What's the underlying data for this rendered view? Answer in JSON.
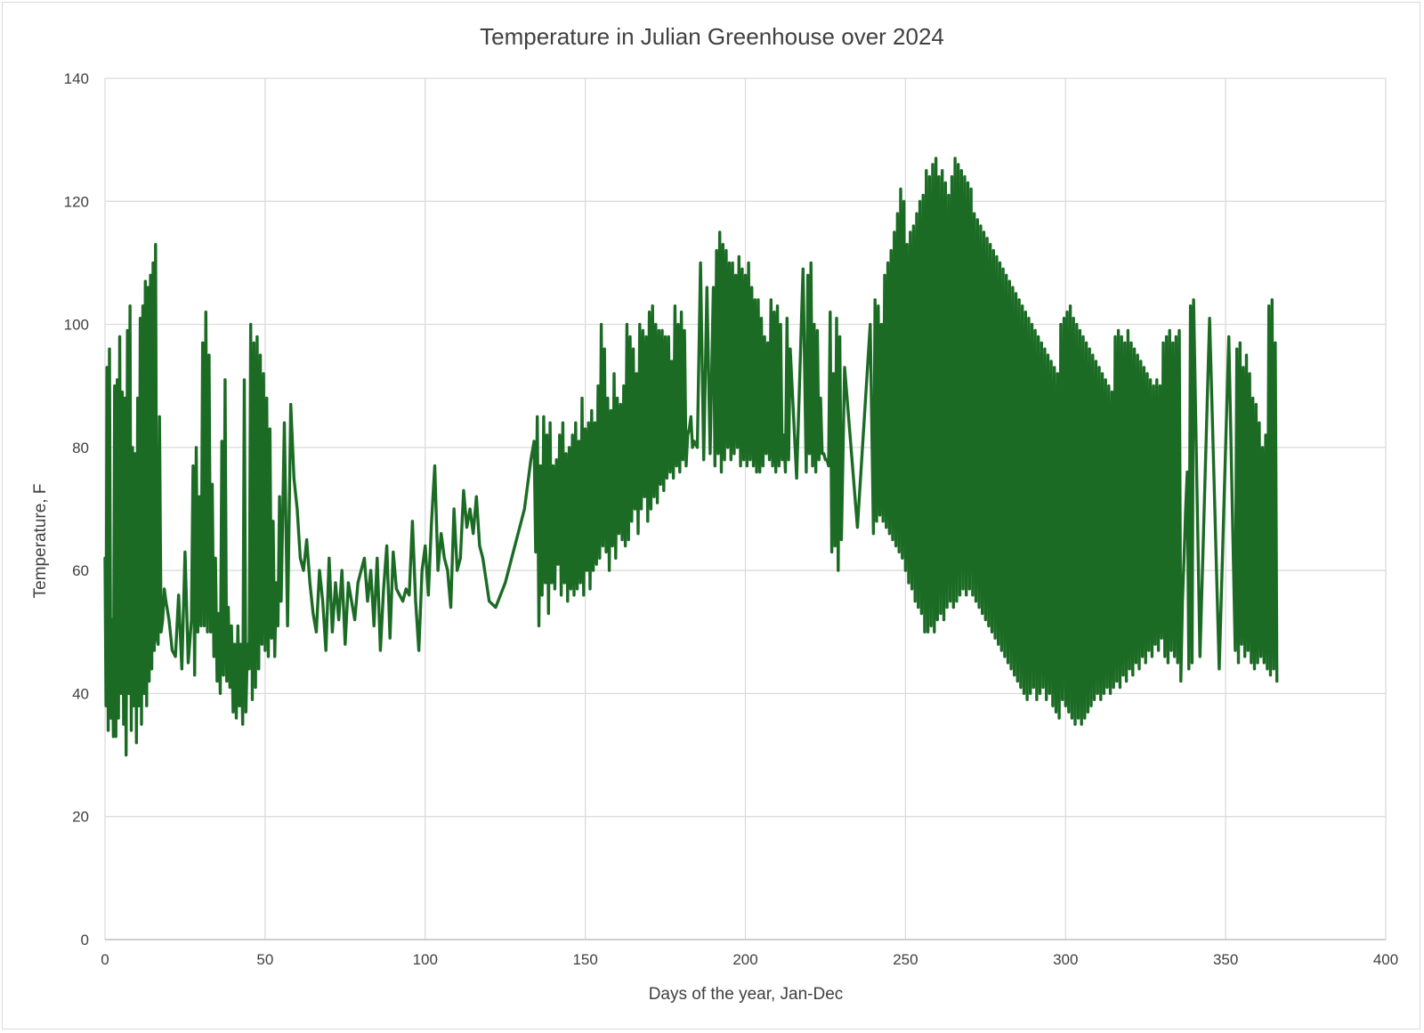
{
  "chart_data": {
    "type": "line",
    "title": "Temperature in Julian Greenhouse  over 2024",
    "xlabel": "Days of the year, Jan-Dec",
    "ylabel": "Temperature, F",
    "xlim": [
      0,
      400
    ],
    "ylim": [
      0,
      140
    ],
    "xticks": [
      0,
      50,
      100,
      150,
      200,
      250,
      300,
      350,
      400
    ],
    "yticks": [
      0,
      20,
      40,
      60,
      80,
      100,
      120,
      140
    ],
    "grid": true,
    "legend": "none",
    "series": [
      {
        "color": "#1b6b24",
        "x": [
          0,
          0.3,
          0.6,
          1,
          1.4,
          1.8,
          2.2,
          2.6,
          3,
          3.4,
          3.8,
          4.2,
          4.6,
          5,
          5.4,
          5.8,
          6.2,
          6.6,
          7,
          7.4,
          7.8,
          8.2,
          8.6,
          9,
          9.4,
          9.8,
          10.2,
          10.6,
          11,
          11.4,
          11.8,
          12.2,
          12.6,
          13,
          13.4,
          13.8,
          14.2,
          14.6,
          15,
          15.4,
          15.8,
          16.2,
          16.6,
          17,
          17.5,
          18,
          18.5,
          19,
          20,
          21,
          22,
          23,
          24,
          25,
          26,
          27,
          27.5,
          28,
          28.5,
          29,
          29.5,
          30,
          30.5,
          31,
          31.5,
          32,
          32.5,
          33,
          33.5,
          34,
          34.5,
          35,
          35.5,
          36,
          36.5,
          37,
          37.5,
          38,
          38.5,
          39,
          39.5,
          40,
          40.5,
          41,
          41.5,
          42,
          42.5,
          43,
          43.5,
          44,
          44.5,
          45,
          45.5,
          46,
          46.5,
          47,
          47.5,
          48,
          48.5,
          49,
          49.5,
          50,
          50.5,
          51,
          51.5,
          52,
          52.5,
          53,
          53.5,
          54,
          54.5,
          55,
          56,
          57,
          58,
          59,
          60,
          61,
          62,
          63,
          64,
          65,
          66,
          67,
          68,
          69,
          70,
          71,
          72,
          73,
          74,
          75,
          76,
          77,
          78,
          79,
          80,
          81,
          82,
          83,
          84,
          85,
          86,
          87,
          88,
          89,
          90,
          91,
          92,
          93,
          94,
          95,
          96,
          97,
          98,
          99,
          100,
          101,
          102,
          103,
          104,
          105,
          106,
          107,
          108,
          109,
          110,
          111,
          112,
          113,
          114,
          115,
          116,
          117,
          118,
          120,
          122,
          125,
          128,
          131,
          133,
          134,
          134.5,
          135,
          135.5,
          136,
          136.5,
          137,
          137.5,
          138,
          138.5,
          139,
          139.5,
          140,
          140.5,
          141,
          141.5,
          142,
          142.5,
          143,
          143.5,
          144,
          144.5,
          145,
          145.5,
          146,
          146.5,
          147,
          147.5,
          148,
          148.5,
          149,
          149.5,
          150,
          150.5,
          151,
          151.5,
          152,
          152.5,
          153,
          153.5,
          154,
          154.5,
          155,
          155.5,
          156,
          156.5,
          157,
          157.5,
          158,
          158.5,
          159,
          159.5,
          160,
          160.5,
          161,
          161.5,
          162,
          162.5,
          163,
          163.5,
          164,
          164.5,
          165,
          165.5,
          166,
          166.5,
          167,
          167.5,
          168,
          168.5,
          169,
          169.5,
          170,
          170.5,
          171,
          171.5,
          172,
          172.5,
          173,
          173.5,
          174,
          174.5,
          175,
          175.5,
          176,
          176.5,
          177,
          177.5,
          178,
          178.5,
          179,
          179.5,
          180,
          180.5,
          181,
          181.5,
          182,
          182.5,
          183,
          183.5,
          184,
          185,
          186,
          187,
          188,
          189,
          190,
          190.5,
          191,
          191.5,
          192,
          192.5,
          193,
          193.5,
          194,
          194.5,
          195,
          195.5,
          196,
          196.5,
          197,
          197.5,
          198,
          198.5,
          199,
          199.5,
          200,
          200.5,
          201,
          201.5,
          202,
          202.5,
          203,
          203.5,
          204,
          204.5,
          205,
          205.5,
          206,
          206.5,
          207,
          207.5,
          208,
          208.5,
          209,
          209.5,
          210,
          210.5,
          211,
          211.5,
          212,
          212.5,
          213,
          213.5,
          214,
          216,
          218,
          219,
          219.5,
          220,
          220.5,
          221,
          221.5,
          222,
          222.5,
          223,
          223.5,
          224,
          224.5,
          225,
          225.5,
          226,
          226.5,
          227,
          227.5,
          228,
          228.5,
          229,
          229.5,
          230,
          231,
          235,
          239,
          240,
          240.5,
          241,
          241.5,
          242,
          242.5,
          243,
          243.5,
          244,
          244.5,
          245,
          245.5,
          246,
          246.5,
          247,
          247.5,
          248,
          248.5,
          249,
          249.5,
          250,
          250.5,
          251,
          251.5,
          252,
          252.5,
          253,
          253.5,
          254,
          254.5,
          255,
          255.5,
          256,
          256.5,
          257,
          257.5,
          258,
          258.5,
          259,
          259.5,
          260,
          260.5,
          261,
          261.5,
          262,
          262.5,
          263,
          263.5,
          264,
          264.5,
          265,
          265.5,
          266,
          266.5,
          267,
          267.5,
          268,
          268.5,
          269,
          269.5,
          270,
          270.5,
          271,
          271.5,
          272,
          272.5,
          273,
          273.5,
          274,
          274.5,
          275,
          275.5,
          276,
          276.5,
          277,
          277.5,
          278,
          278.5,
          279,
          279.5,
          280,
          280.5,
          281,
          281.5,
          282,
          282.5,
          283,
          283.5,
          284,
          284.5,
          285,
          285.5,
          286,
          286.5,
          287,
          287.5,
          288,
          288.5,
          289,
          289.5,
          290,
          290.5,
          291,
          291.5,
          292,
          292.5,
          293,
          293.5,
          294,
          294.5,
          295,
          295.5,
          296,
          296.5,
          297,
          297.5,
          298,
          298.5,
          299,
          299.5,
          300,
          300.5,
          301,
          301.5,
          302,
          302.5,
          303,
          303.5,
          304,
          304.5,
          305,
          305.5,
          306,
          306.5,
          307,
          307.5,
          308,
          308.5,
          309,
          309.5,
          310,
          310.5,
          311,
          311.5,
          312,
          312.5,
          313,
          313.5,
          314,
          314.5,
          315,
          315.5,
          316,
          316.5,
          317,
          317.5,
          318,
          318.5,
          319,
          319.5,
          320,
          320.5,
          321,
          321.5,
          322,
          322.5,
          323,
          323.5,
          324,
          324.5,
          325,
          325.5,
          326,
          326.5,
          327,
          327.5,
          328,
          328.5,
          329,
          329.5,
          330,
          330.5,
          331,
          331.5,
          332,
          332.5,
          333,
          333.5,
          334,
          334.5,
          335,
          335.5,
          336,
          336.5,
          337,
          337.5,
          338,
          338.5,
          339,
          339.5,
          340,
          342,
          345,
          348,
          351,
          353,
          353.5,
          354,
          354.5,
          355,
          355.5,
          356,
          356.5,
          357,
          357.5,
          358,
          358.5,
          359,
          359.5,
          360,
          360.5,
          361,
          361.5,
          362,
          362.5,
          363,
          363.5,
          364,
          364.5,
          365,
          365.5,
          366
        ],
        "y": [
          62,
          38,
          93,
          34,
          96,
          36,
          52,
          33,
          90,
          33,
          91,
          36,
          98,
          40,
          89,
          35,
          88,
          30,
          99,
          40,
          103,
          34,
          80,
          38,
          79,
          32,
          88,
          38,
          101,
          35,
          103,
          40,
          107,
          38,
          106,
          42,
          108,
          44,
          110,
          47,
          113,
          49,
          48,
          85,
          50,
          52,
          57,
          55,
          52,
          47,
          46,
          56,
          44,
          63,
          45,
          52,
          77,
          43,
          80,
          50,
          72,
          51,
          97,
          51,
          102,
          50,
          95,
          50,
          74,
          46,
          62,
          42,
          53,
          40,
          81,
          43,
          91,
          42,
          54,
          41,
          51,
          37,
          48,
          36,
          51,
          38,
          48,
          35,
          91,
          37,
          48,
          44,
          100,
          39,
          97,
          41,
          98,
          44,
          95,
          48,
          92,
          47,
          88,
          46,
          83,
          49,
          68,
          46,
          58,
          51,
          72,
          55,
          84,
          51,
          87,
          75,
          70,
          62,
          60,
          65,
          58,
          53,
          50,
          60,
          55,
          47,
          62,
          50,
          58,
          52,
          60,
          48,
          58,
          55,
          52,
          58,
          60,
          62,
          55,
          60,
          51,
          62,
          47,
          57,
          64,
          49,
          63,
          57,
          56,
          55,
          57,
          56,
          68,
          55,
          47,
          60,
          64,
          56,
          68,
          77,
          60,
          66,
          62,
          60,
          54,
          70,
          60,
          62,
          73,
          67,
          70,
          66,
          72,
          64,
          62,
          55,
          54,
          58,
          64,
          70,
          78,
          81,
          63,
          85,
          51,
          77,
          56,
          85,
          58,
          82,
          53,
          84,
          58,
          77,
          57,
          78,
          61,
          82,
          56,
          84,
          58,
          79,
          55,
          80,
          57,
          82,
          56,
          84,
          57,
          81,
          58,
          88,
          56,
          83,
          60,
          84,
          57,
          86,
          60,
          84,
          61,
          90,
          62,
          100,
          64,
          96,
          63,
          88,
          60,
          86,
          64,
          92,
          62,
          88,
          66,
          87,
          65,
          90,
          64,
          100,
          65,
          98,
          68,
          96,
          70,
          92,
          66,
          100,
          70,
          99,
          72,
          98,
          68,
          102,
          70,
          103,
          72,
          100,
          71,
          99,
          74,
          99,
          73,
          98,
          75,
          98,
          76,
          94,
          75,
          103,
          77,
          100,
          76,
          102,
          78,
          99,
          77,
          82,
          83,
          85,
          80,
          81,
          80,
          110,
          78,
          106,
          79,
          106,
          77,
          112,
          79,
          115,
          76,
          113,
          78,
          112,
          80,
          110,
          78,
          110,
          79,
          108,
          80,
          111,
          77,
          109,
          78,
          108,
          77,
          110,
          78,
          106,
          77,
          104,
          76,
          104,
          76,
          101,
          77,
          98,
          79,
          97,
          78,
          104,
          77,
          102,
          76,
          103,
          77,
          100,
          78,
          82,
          76,
          101,
          78,
          96,
          75,
          109,
          76,
          108,
          79,
          110,
          77,
          100,
          76,
          99,
          78,
          88,
          79,
          79,
          78,
          78,
          77,
          102,
          63,
          92,
          64,
          101,
          60,
          98,
          65,
          93,
          67,
          100,
          66,
          104,
          68,
          103,
          69,
          100,
          68,
          108,
          67,
          110,
          66,
          112,
          65,
          115,
          64,
          118,
          63,
          122,
          62,
          120,
          60,
          113,
          58,
          115,
          57,
          116,
          55,
          118,
          54,
          120,
          53,
          121,
          50,
          125,
          50,
          124,
          51,
          126,
          50,
          127,
          52,
          124,
          53,
          125,
          52,
          123,
          54,
          121,
          55,
          124,
          54,
          127,
          55,
          126,
          56,
          125,
          57,
          124,
          56,
          123,
          57,
          122,
          56,
          118,
          55,
          117,
          54,
          116,
          53,
          115,
          52,
          114,
          51,
          113,
          50,
          112,
          49,
          111,
          48,
          110,
          47,
          109,
          46,
          108,
          45,
          107,
          44,
          106,
          43,
          105,
          42,
          104,
          41,
          103,
          40,
          102,
          39,
          101,
          40,
          100,
          41,
          99,
          39,
          98,
          40,
          97,
          41,
          96,
          39,
          95,
          40,
          94,
          38,
          93,
          37,
          92,
          36,
          100,
          39,
          101,
          38,
          102,
          37,
          103,
          36,
          101,
          35,
          100,
          36,
          99,
          35,
          98,
          36,
          97,
          37,
          96,
          38,
          95,
          39,
          94,
          40,
          93,
          39,
          92,
          40,
          91,
          41,
          90,
          40,
          89,
          41,
          98,
          42,
          99,
          41,
          98,
          43,
          97,
          42,
          99,
          44,
          97,
          43,
          96,
          45,
          95,
          44,
          94,
          46,
          93,
          45,
          92,
          47,
          91,
          46,
          90,
          48,
          91,
          47,
          90,
          49,
          97,
          46,
          98,
          45,
          99,
          47,
          97,
          46,
          98,
          45,
          99,
          42,
          55,
          62,
          70,
          76,
          44,
          103,
          45,
          104,
          46,
          101,
          44,
          98,
          47,
          96,
          45,
          97,
          48,
          93,
          46,
          95,
          47,
          92,
          45,
          88,
          44,
          87,
          45,
          84,
          46,
          80,
          45,
          82,
          44,
          103,
          43,
          104,
          44,
          97,
          42
        ]
      }
    ]
  }
}
